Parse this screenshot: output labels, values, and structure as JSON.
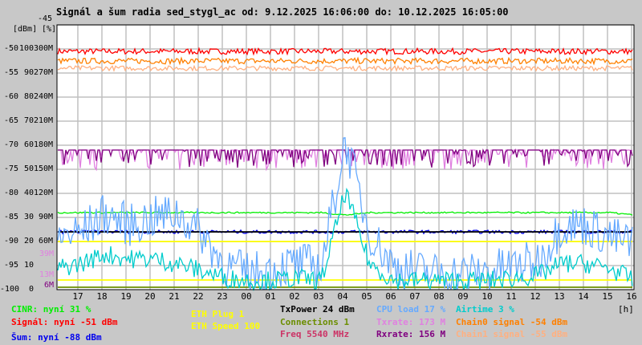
{
  "chart_data": {
    "type": "line",
    "title": "Signál a šum radia sed_stygl_ac od: 9.12.2025 16:06:00 do: 10.12.2025 16:05:00",
    "axis_units": {
      "dbm": "[dBm]",
      "pct": "[%]",
      "hours": "[h]"
    },
    "y_dbm_top_label": "-45",
    "y_ticks": [
      {
        "dbm": "-50",
        "pct": "100",
        "rate": "300M"
      },
      {
        "dbm": "-55",
        "pct": "90",
        "rate": "270M"
      },
      {
        "dbm": "-60",
        "pct": "80",
        "rate": "240M"
      },
      {
        "dbm": "-65",
        "pct": "70",
        "rate": "210M"
      },
      {
        "dbm": "-70",
        "pct": "60",
        "rate": "180M"
      },
      {
        "dbm": "-75",
        "pct": "50",
        "rate": "150M"
      },
      {
        "dbm": "-80",
        "pct": "40",
        "rate": "120M"
      },
      {
        "dbm": "-85",
        "pct": "30",
        "rate": "90M"
      },
      {
        "dbm": "-90",
        "pct": "20",
        "rate": "60M"
      },
      {
        "dbm": "-95",
        "pct": "10",
        "rate": ""
      },
      {
        "dbm": "-100",
        "pct": "0",
        "rate": ""
      }
    ],
    "extra_rate_labels": [
      {
        "text": "39M",
        "value": 39,
        "color": "#e080e0"
      },
      {
        "text": "13M",
        "value": 13,
        "color": "#e080e0"
      },
      {
        "text": "6M",
        "value": 6,
        "color": "#800080"
      }
    ],
    "ylim_dbm": [
      -100,
      -45
    ],
    "ylim_pct": [
      0,
      110
    ],
    "ylim_rate_M": [
      0,
      330
    ],
    "x_ticks": [
      "17",
      "18",
      "19",
      "20",
      "21",
      "22",
      "23",
      "00",
      "01",
      "02",
      "03",
      "04",
      "05",
      "06",
      "07",
      "08",
      "09",
      "10",
      "11",
      "12",
      "13",
      "14",
      "15",
      "16"
    ],
    "grid": true,
    "series": [
      {
        "name": "Signál",
        "unit": "dbm",
        "color": "#ff0000",
        "noise": 1.2,
        "values": [
          -50.5,
          -50.5,
          -50.5,
          -50.5,
          -50.5,
          -50.5,
          -50.5,
          -50.5,
          -50.5,
          -50.5,
          -50.5,
          -50.5,
          -50.5,
          -50.5,
          -50.5,
          -50.5,
          -50.5,
          -50.5,
          -50.5,
          -50.5,
          -50.5,
          -50.5,
          -50.5,
          -50.5,
          -50.5
        ]
      },
      {
        "name": "Chain0 signal",
        "unit": "dbm",
        "color": "#ff8000",
        "noise": 1.2,
        "values": [
          -52.5,
          -52.5,
          -52.5,
          -52.5,
          -52.5,
          -52.5,
          -52.5,
          -52.5,
          -52.5,
          -52.5,
          -52.5,
          -52.5,
          -52.5,
          -52.5,
          -52.5,
          -52.5,
          -52.5,
          -52.5,
          -52.5,
          -52.5,
          -52.5,
          -52.5,
          -52.5,
          -52.5,
          -52.5
        ]
      },
      {
        "name": "Chain1 signal",
        "unit": "dbm",
        "color": "#ffb080",
        "noise": 1.0,
        "values": [
          -54,
          -54,
          -54,
          -54,
          -54,
          -54,
          -54,
          -54,
          -54,
          -54,
          -54,
          -54,
          -54,
          -54,
          -54,
          -54,
          -54,
          -54,
          -54,
          -54,
          -54,
          -54,
          -54,
          -54,
          -54
        ]
      },
      {
        "name": "Txrate",
        "unit": "rate",
        "color": "#e080e0",
        "noise": 25,
        "dips": true,
        "values": [
          174,
          174,
          174,
          174,
          174,
          174,
          174,
          174,
          174,
          174,
          174,
          174,
          174,
          174,
          174,
          174,
          174,
          174,
          174,
          174,
          174,
          174,
          174,
          174,
          174
        ]
      },
      {
        "name": "Rxrate",
        "unit": "rate",
        "color": "#800080",
        "noise": 22,
        "dips": true,
        "values": [
          174,
          174,
          174,
          174,
          174,
          174,
          174,
          174,
          174,
          174,
          174,
          174,
          174,
          174,
          174,
          174,
          174,
          174,
          174,
          174,
          174,
          174,
          174,
          174,
          174
        ]
      },
      {
        "name": "CINR",
        "unit": "pct",
        "color": "#00ee00",
        "noise": 0.6,
        "values": [
          32,
          32,
          32,
          32,
          32,
          32,
          32,
          32,
          32,
          32,
          32,
          32,
          31,
          32,
          32,
          32,
          32,
          32,
          32,
          32,
          32,
          32,
          32,
          32,
          31
        ]
      },
      {
        "name": "Šum",
        "unit": "dbm",
        "color": "#0000ee",
        "noise": 0.7,
        "values": [
          -88,
          -88,
          -88,
          -88,
          -88,
          -88,
          -88,
          -88,
          -88,
          -88,
          -88,
          -88,
          -88,
          -88,
          -88,
          -88,
          -88,
          -88,
          -88,
          -88,
          -88,
          -88,
          -88,
          -88,
          -88
        ]
      },
      {
        "name": "TxPower",
        "unit": "pct",
        "color": "#000000",
        "noise": 0,
        "values": [
          24,
          24,
          24,
          24,
          24,
          24,
          24,
          24,
          24,
          24,
          24,
          24,
          24,
          24,
          24,
          24,
          24,
          24,
          24,
          24,
          24,
          24,
          24,
          24,
          24
        ]
      },
      {
        "name": "ETH Speed",
        "unit": "pct",
        "color": "#ffff00",
        "noise": 0,
        "values": [
          20,
          20,
          20,
          20,
          20,
          20,
          20,
          20,
          20,
          20,
          20,
          20,
          20,
          20,
          20,
          20,
          20,
          20,
          20,
          20,
          20,
          20,
          20,
          20,
          20
        ]
      },
      {
        "name": "ETH Plug",
        "unit": "pct",
        "color": "#ffff00",
        "noise": 0,
        "values": [
          4,
          4,
          4,
          4,
          4,
          4,
          4,
          4,
          4,
          4,
          4,
          4,
          4,
          4,
          4,
          4,
          4,
          4,
          4,
          4,
          4,
          4,
          4,
          4,
          4
        ]
      },
      {
        "name": "Connections",
        "unit": "pct",
        "color": "#6b8e00",
        "noise": 0,
        "values": [
          1,
          1,
          1,
          1,
          1,
          1,
          1,
          1,
          1,
          1,
          1,
          1,
          1,
          1,
          1,
          1,
          1,
          1,
          1,
          1,
          1,
          1,
          1,
          1,
          1
        ]
      },
      {
        "name": "CPU load",
        "unit": "pct",
        "color": "#66aaff",
        "noise": 9,
        "values": [
          20,
          22,
          30,
          25,
          28,
          30,
          22,
          8,
          5,
          7,
          9,
          8,
          60,
          22,
          8,
          6,
          5,
          5,
          6,
          8,
          10,
          25,
          25,
          20,
          17
        ]
      },
      {
        "name": "Airtime",
        "unit": "pct",
        "color": "#00cccc",
        "noise": 4,
        "values": [
          8,
          10,
          14,
          12,
          12,
          10,
          7,
          4,
          3,
          3,
          4,
          3,
          40,
          10,
          3,
          3,
          3,
          3,
          3,
          4,
          5,
          10,
          10,
          8,
          3
        ]
      }
    ]
  },
  "legend": {
    "cinr": {
      "text": "CINR: nyní 31 %",
      "color": "#00ee00"
    },
    "signal": {
      "text": "Signál: nyní -51 dBm",
      "color": "#ff0000"
    },
    "noise": {
      "text": "Šum: nyní -88 dBm",
      "color": "#0000ee"
    },
    "eth_plug": {
      "text": "ETH Plug 1",
      "color": "#ffff00"
    },
    "eth_speed": {
      "text": "ETH Speed 100",
      "color": "#ffff00"
    },
    "txpower": {
      "text": "TxPower 24 dBm",
      "color": "#000000"
    },
    "connections": {
      "text": "Connections 1",
      "color": "#6b8e00"
    },
    "freq": {
      "text": "Freq 5540 MHz",
      "color": "#cc3366"
    },
    "cpu": {
      "text": "CPU load 17 %",
      "color": "#66aaff"
    },
    "txrate": {
      "text": "Txrate: 173 M",
      "color": "#e080e0"
    },
    "rxrate": {
      "text": "Rxrate: 156 M",
      "color": "#800080"
    },
    "airtime": {
      "text": "Airtime 3 %",
      "color": "#00cccc"
    },
    "chain0": {
      "text": "Chain0 signal -54 dBm",
      "color": "#ff8000"
    },
    "chain1": {
      "text": "Chain1 signal -55 dBm",
      "color": "#ffb080"
    }
  }
}
